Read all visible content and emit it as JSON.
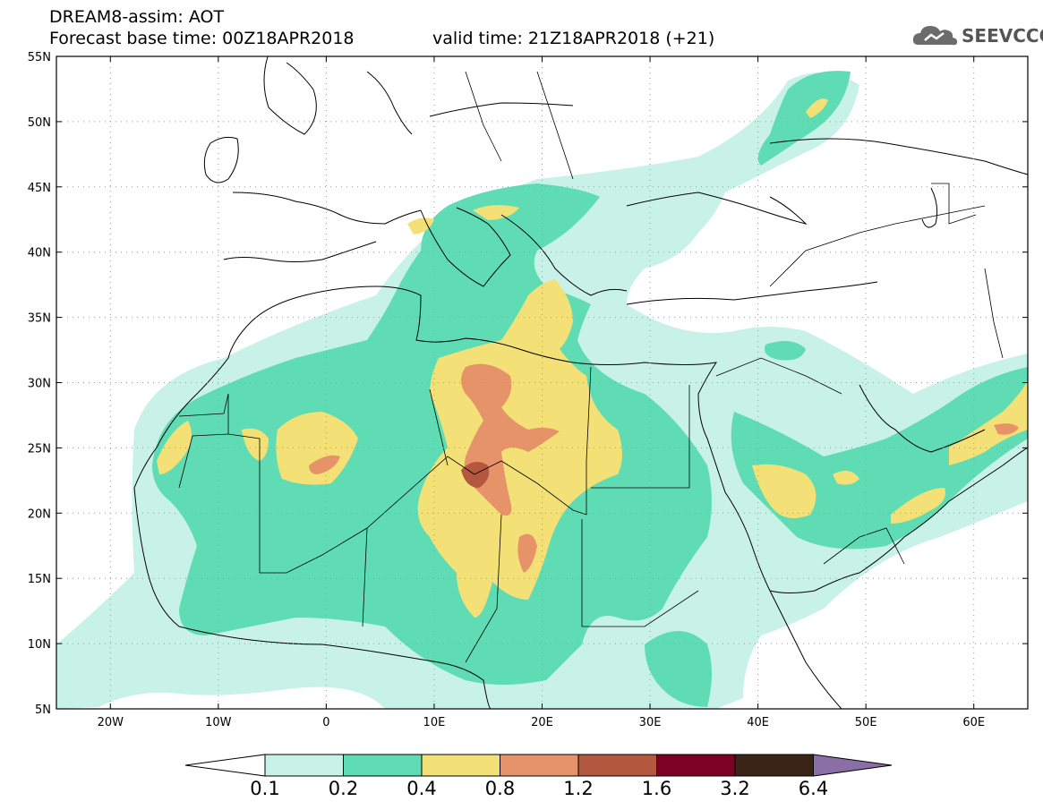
{
  "header": {
    "model_title": "DREAM8-assim: AOT",
    "base_time": "Forecast base time: 00Z18APR2018",
    "valid_time": "valid time: 21Z18APR2018 (+21)"
  },
  "logo": {
    "text": "SEEVCCC",
    "icon": "cloud-icon"
  },
  "map": {
    "lat_labels": [
      "55N",
      "50N",
      "45N",
      "40N",
      "35N",
      "30N",
      "25N",
      "20N",
      "15N",
      "10N",
      "5N"
    ],
    "lon_labels": [
      "20W",
      "10W",
      "0",
      "10E",
      "20E",
      "30E",
      "40E",
      "50E",
      "60E"
    ],
    "lon_range": [
      -25,
      65
    ],
    "lat_range": [
      5,
      55
    ],
    "grid": "dotted"
  },
  "colorbar": {
    "levels": [
      "0.1",
      "0.2",
      "0.4",
      "0.8",
      "1.2",
      "1.6",
      "3.2",
      "6.4"
    ],
    "colors": [
      "#ffffff",
      "#c8f2e8",
      "#5fdcb3",
      "#f3e177",
      "#e7936a",
      "#b3573f",
      "#7d0025",
      "#3a2416",
      "#8a6fa6"
    ]
  }
}
